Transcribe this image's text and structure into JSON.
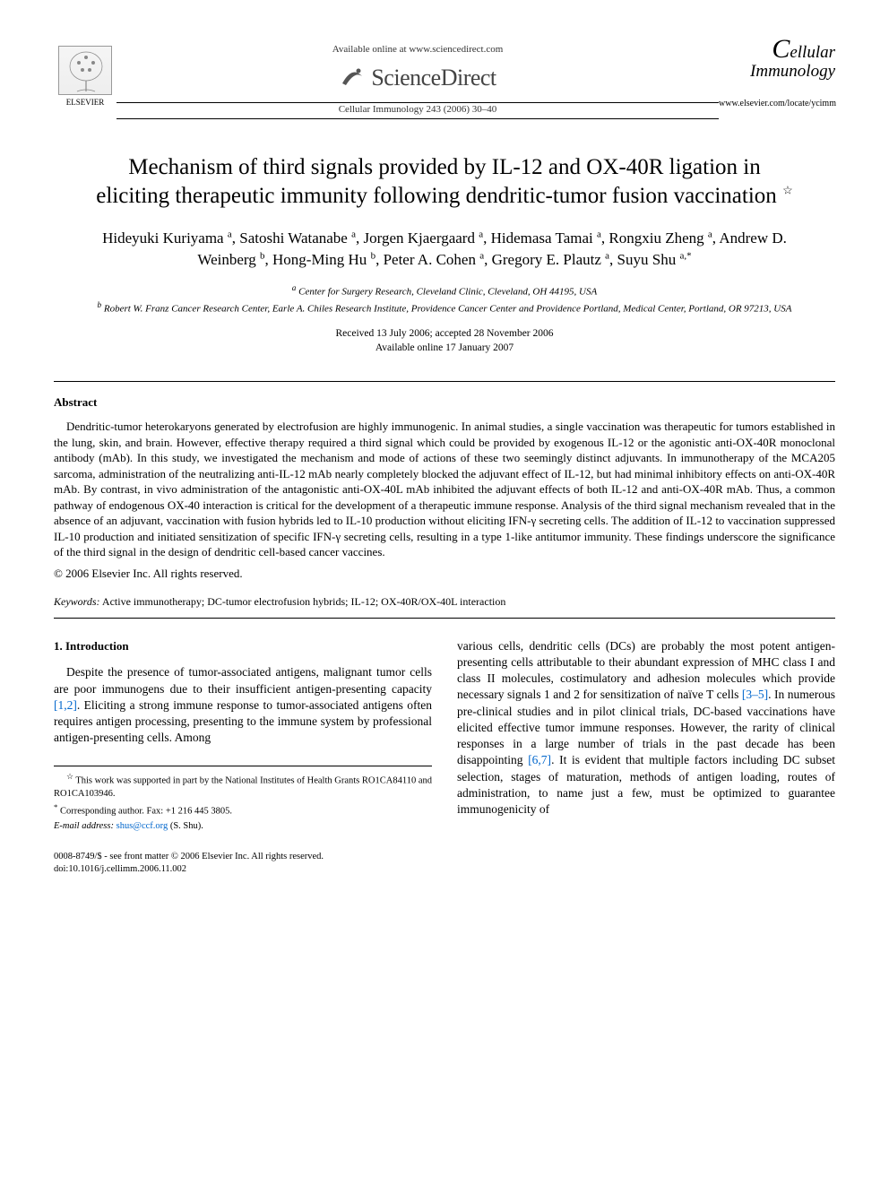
{
  "header": {
    "available_text": "Available online at www.sciencedirect.com",
    "sd_name": "ScienceDirect",
    "journal_ref": "Cellular Immunology 243 (2006) 30–40",
    "elsevier_label": "ELSEVIER",
    "journal_logo_line1": "Cellular",
    "journal_logo_line2": "Immunology",
    "journal_url": "www.elsevier.com/locate/ycimm"
  },
  "title": "Mechanism of third signals provided by IL-12 and OX-40R ligation in eliciting therapeutic immunity following dendritic-tumor fusion vaccination",
  "title_note": "☆",
  "authors_html": "Hideyuki Kuriyama <sup>a</sup>, Satoshi Watanabe <sup>a</sup>, Jorgen Kjaergaard <sup>a</sup>, Hidemasa Tamai <sup>a</sup>, Rongxiu Zheng <sup>a</sup>, Andrew D. Weinberg <sup>b</sup>, Hong-Ming Hu <sup>b</sup>, Peter A. Cohen <sup>a</sup>, Gregory E. Plautz <sup>a</sup>, Suyu Shu <sup>a,*</sup>",
  "affiliations": {
    "a": "Center for Surgery Research, Cleveland Clinic, Cleveland, OH 44195, USA",
    "b": "Robert W. Franz Cancer Research Center, Earle A. Chiles Research Institute, Providence Cancer Center and Providence Portland, Medical Center, Portland, OR 97213, USA"
  },
  "dates": {
    "received_accepted": "Received 13 July 2006; accepted 28 November 2006",
    "online": "Available online 17 January 2007"
  },
  "abstract": {
    "heading": "Abstract",
    "text": "Dendritic-tumor heterokaryons generated by electrofusion are highly immunogenic. In animal studies, a single vaccination was therapeutic for tumors established in the lung, skin, and brain. However, effective therapy required a third signal which could be provided by exogenous IL-12 or the agonistic anti-OX-40R monoclonal antibody (mAb). In this study, we investigated the mechanism and mode of actions of these two seemingly distinct adjuvants. In immunotherapy of the MCA205 sarcoma, administration of the neutralizing anti-IL-12 mAb nearly completely blocked the adjuvant effect of IL-12, but had minimal inhibitory effects on anti-OX-40R mAb. By contrast, in vivo administration of the antagonistic anti-OX-40L mAb inhibited the adjuvant effects of both IL-12 and anti-OX-40R mAb. Thus, a common pathway of endogenous OX-40 interaction is critical for the development of a therapeutic immune response. Analysis of the third signal mechanism revealed that in the absence of an adjuvant, vaccination with fusion hybrids led to IL-10 production without eliciting IFN-γ secreting cells. The addition of IL-12 to vaccination suppressed IL-10 production and initiated sensitization of specific IFN-γ secreting cells, resulting in a type 1-like antitumor immunity. These findings underscore the significance of the third signal in the design of dendritic cell-based cancer vaccines.",
    "copyright": "© 2006 Elsevier Inc. All rights reserved."
  },
  "keywords": {
    "label": "Keywords:",
    "text": "Active immunotherapy; DC-tumor electrofusion hybrids; IL-12; OX-40R/OX-40L interaction"
  },
  "intro": {
    "heading": "1. Introduction",
    "col1": "Despite the presence of tumor-associated antigens, malignant tumor cells are poor immunogens due to their insufficient antigen-presenting capacity [1,2]. Eliciting a strong immune response to tumor-associated antigens often requires antigen processing, presenting to the immune system by professional antigen-presenting cells. Among",
    "col2": "various cells, dendritic cells (DCs) are probably the most potent antigen-presenting cells attributable to their abundant expression of MHC class I and class II molecules, costimulatory and adhesion molecules which provide necessary signals 1 and 2 for sensitization of naïve T cells [3–5]. In numerous pre-clinical studies and in pilot clinical trials, DC-based vaccinations have elicited effective tumor immune responses. However, the rarity of clinical responses in a large number of trials in the past decade has been disappointing [6,7]. It is evident that multiple factors including DC subset selection, stages of maturation, methods of antigen loading, routes of administration, to name just a few, must be optimized to guarantee immunogenicity of"
  },
  "footnotes": {
    "funding": "This work was supported in part by the National Institutes of Health Grants RO1CA84110 and RO1CA103946.",
    "corresponding": "Corresponding author. Fax: +1 216 445 3805.",
    "email_label": "E-mail address:",
    "email": "shus@ccf.org",
    "email_name": "(S. Shu)."
  },
  "footer": {
    "left1": "0008-8749/$ - see front matter © 2006 Elsevier Inc. All rights reserved.",
    "left2": "doi:10.1016/j.cellimm.2006.11.002"
  },
  "colors": {
    "link": "#0066cc",
    "text": "#000000",
    "background": "#ffffff",
    "rule": "#000000"
  },
  "typography": {
    "body_font": "Times New Roman",
    "title_size_pt": 19,
    "authors_size_pt": 13,
    "body_size_pt": 10,
    "abstract_size_pt": 10,
    "footnote_size_pt": 8
  }
}
